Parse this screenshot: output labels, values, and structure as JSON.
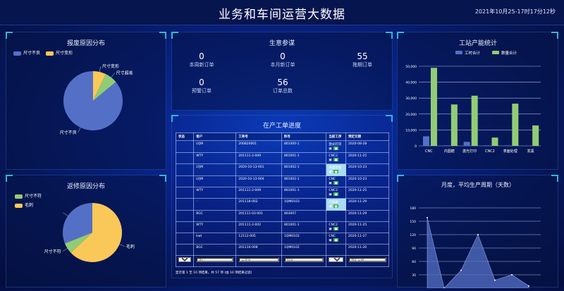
{
  "header": {
    "title": "业务和车间运营大数据",
    "time": "2021年10月25-17时17分12秒"
  },
  "scrap": {
    "title": "报废原因分布",
    "legend": [
      "尺寸不良",
      "尺寸变形"
    ],
    "slices": [
      {
        "name": "尺寸不良",
        "value": 86,
        "color": "#5470c6"
      },
      {
        "name": "尺寸超差",
        "value": 7,
        "color": "#91cc75"
      },
      {
        "name": "尺寸变形",
        "value": 7,
        "color": "#fac858"
      }
    ]
  },
  "rework": {
    "title": "返修原因分布",
    "legend": [
      "尺寸不符",
      "毛刺"
    ],
    "slices": [
      {
        "name": "",
        "value": 31,
        "color": "#5470c6"
      },
      {
        "name": "尺寸不符",
        "value": 6,
        "color": "#91cc75"
      },
      {
        "name": "毛刺",
        "value": 63,
        "color": "#fac858"
      }
    ]
  },
  "business": {
    "title": "生意参谋",
    "stats": [
      {
        "value": "0",
        "label": "本周新订单"
      },
      {
        "value": "0",
        "label": "本月新订单"
      },
      {
        "value": "55",
        "label": "拖期订单"
      },
      {
        "value": "0",
        "label": "预警订单"
      },
      {
        "value": "56",
        "label": "订单总数"
      }
    ]
  },
  "orders": {
    "title": "在产工单进度",
    "columns": [
      "状态",
      "客户",
      "工单号",
      "料号",
      "当前工序",
      "预定交期"
    ],
    "rows": [
      [
        "",
        "LYJM",
        "200820001",
        "801000-1",
        "激光打印",
        "2020-08-28"
      ],
      [
        "",
        "WTY",
        "201111-2-009",
        "801001-1",
        "CNC2",
        "2020-11-25"
      ],
      [
        "",
        "LYJM",
        "2020-10-13-001",
        "801002-1",
        "表面处理",
        "2020-10-23"
      ],
      [
        "",
        "LYJM",
        "2020-10-13-004",
        "801002-1",
        "CNC",
        "2020-10-23"
      ],
      [
        "",
        "WTY",
        "201111-2-009",
        "801001-1",
        "CNC2",
        "2020-11-25"
      ],
      [
        "",
        "-",
        "201118-002",
        "1QM0103",
        "内圆磨",
        "2020-11-29"
      ],
      [
        "",
        "BGC",
        "201111-03-001",
        "803007",
        "",
        "2020-11-29"
      ],
      [
        "",
        "WTY",
        "201111-2-002",
        "801001-1",
        "CNC2",
        "2020-11-25"
      ],
      [
        "",
        "kwt",
        "12112-005",
        "1QM0102",
        "CNC",
        "2020-11-27"
      ],
      [
        "",
        "BGC",
        "201110-008",
        "1QM0102",
        "",
        "2020-11-20"
      ]
    ],
    "highlight_rows": [
      2,
      5
    ],
    "filters": [
      "客户",
      "工单号",
      "料号",
      "预定交期"
    ],
    "footer": "显示第 1 至 10 项结果，共 57 项 (由 10 项结果过滤)"
  },
  "chart_data": [
    {
      "type": "bar",
      "title": "工站产能统计",
      "categories": [
        "CNC",
        "内圆磨",
        "激光打印",
        "CNC2",
        "表面处理",
        "发黑"
      ],
      "series": [
        {
          "name": "工时合计",
          "values": [
            6000,
            300,
            2500,
            300,
            300,
            0
          ],
          "color": "#5470c6"
        },
        {
          "name": "数量合计",
          "values": [
            49000,
            26000,
            31500,
            5200,
            26500,
            12800
          ],
          "color": "#91cc75"
        }
      ],
      "ylim": [
        0,
        50000
      ],
      "yticks": [
        "0",
        "10,000",
        "20,000",
        "30,000",
        "40,000",
        "50,000"
      ],
      "grid": true,
      "legend": "top"
    },
    {
      "type": "area",
      "title": "月度，平均生产周期（天数）",
      "values": [
        158,
        0,
        40,
        120,
        18,
        30,
        5
      ],
      "ylim": [
        0,
        180
      ],
      "yticks": [
        "30",
        "60",
        "90",
        "120",
        "150",
        "180"
      ],
      "color": "#5470c6",
      "grid": true
    }
  ]
}
